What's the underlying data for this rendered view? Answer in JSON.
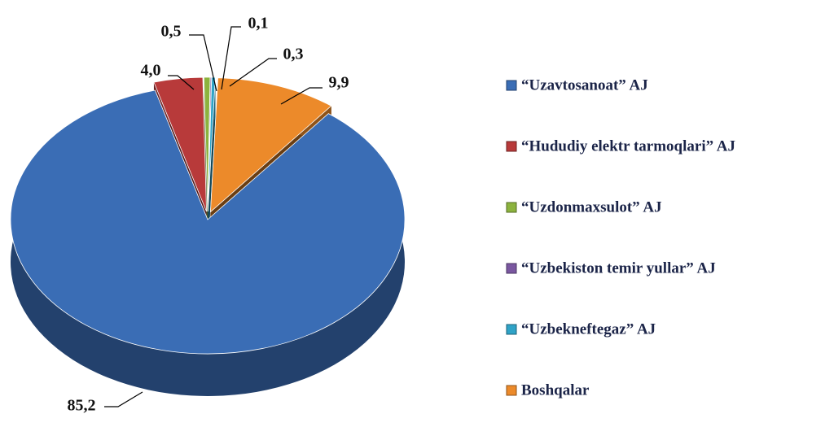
{
  "chart_data": {
    "type": "pie",
    "categories": [
      "“Uzavtosanoat” AJ",
      "“Hududiy elektr tarmoqlari” AJ",
      "“Uzdonmaxsulot” AJ",
      "“Uzbekiston temir yullar” AJ",
      "“Uzbekneftegaz” AJ",
      "Boshqalar"
    ],
    "values": [
      85.2,
      4.0,
      0.5,
      0.1,
      0.3,
      9.9
    ],
    "value_labels": [
      "85,2",
      "4,0",
      "0,5",
      "0,1",
      "0,3",
      "9,9"
    ],
    "colors": [
      "#3a6db5",
      "#b83a3a",
      "#8cb33e",
      "#7a57a0",
      "#2fa3c7",
      "#ec8a2a"
    ],
    "legend": "right"
  }
}
